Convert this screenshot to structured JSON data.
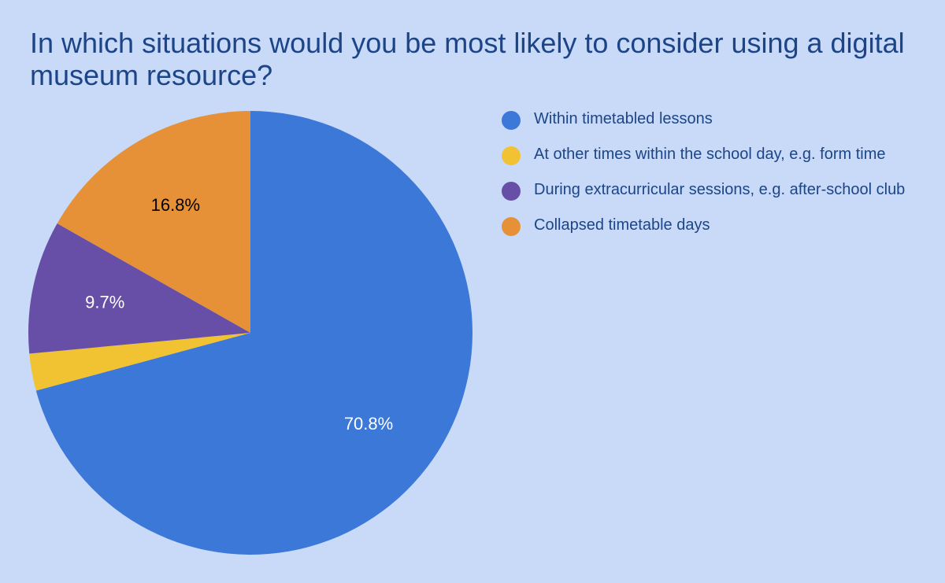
{
  "chart_data": {
    "type": "pie",
    "title": "In which situations would you be most likely to consider using a digital museum resource?",
    "start_angle": "top",
    "direction": "clockwise",
    "legend_position": "right",
    "slices": [
      {
        "label": "Within timetabled lessons",
        "value": 70.8,
        "data_label": "70.8%",
        "color": "#3c78d8",
        "label_color": "#ffffff"
      },
      {
        "label": "At other times within the school day, e.g. form time",
        "value": 2.7,
        "data_label": "",
        "color": "#f1c232",
        "label_color": "#ffffff"
      },
      {
        "label": "During extracurricular sessions, e.g. after-school club",
        "value": 9.7,
        "data_label": "9.7%",
        "color": "#674ea7",
        "label_color": "#ffffff"
      },
      {
        "label": "Collapsed timetable days",
        "value": 16.8,
        "data_label": "16.8%",
        "color": "#e69138",
        "label_color": "#000000"
      }
    ]
  },
  "colors": {
    "background": "#c9daf8",
    "title": "#1c4587"
  }
}
